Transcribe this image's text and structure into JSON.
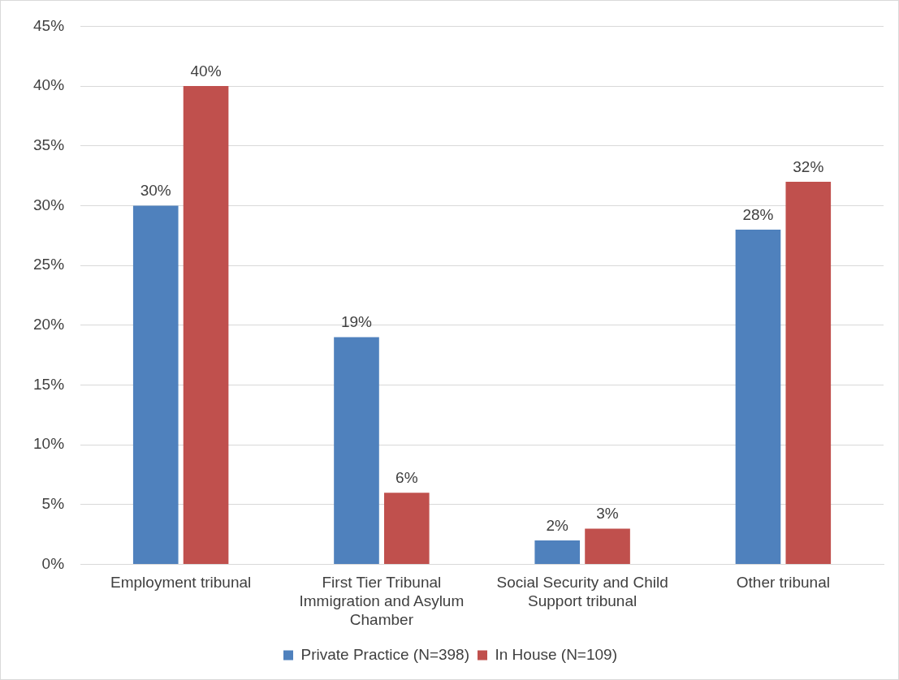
{
  "chart_data": {
    "type": "bar",
    "categories": [
      "Employment tribunal",
      "First Tier Tribunal Immigration and Asylum Chamber",
      "Social Security and Child Support tribunal",
      "Other tribunal"
    ],
    "series": [
      {
        "name": "Private Practice (N=398)",
        "color": "#4f81bd",
        "values": [
          30,
          19,
          2,
          28
        ],
        "value_labels": [
          "30%",
          "19%",
          "2%",
          "28%"
        ]
      },
      {
        "name": "In House (N=109)",
        "color": "#c0504d",
        "values": [
          40,
          6,
          3,
          32
        ],
        "value_labels": [
          "40%",
          "6%",
          "3%",
          "32%"
        ]
      }
    ],
    "ylim": [
      0,
      45
    ],
    "yticks": [
      {
        "value": 0,
        "label": "0%"
      },
      {
        "value": 5,
        "label": "5%"
      },
      {
        "value": 10,
        "label": "10%"
      },
      {
        "value": 15,
        "label": "15%"
      },
      {
        "value": 20,
        "label": "20%"
      },
      {
        "value": 25,
        "label": "25%"
      },
      {
        "value": 30,
        "label": "30%"
      },
      {
        "value": 35,
        "label": "35%"
      },
      {
        "value": 40,
        "label": "40%"
      },
      {
        "value": 45,
        "label": "45%"
      }
    ],
    "grid": "y",
    "legend": "bottom"
  }
}
